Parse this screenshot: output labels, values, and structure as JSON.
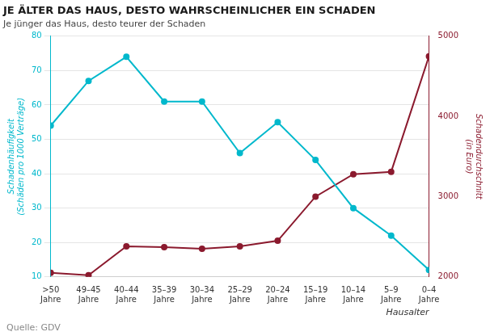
{
  "chart_data": {
    "type": "line",
    "title": "JE ÄLTER DAS HAUS, DESTO WAHRSCHEINLICHER EIN SCHADEN",
    "subtitle": "Je jünger das Haus, desto teurer der Schaden",
    "source": "Quelle: GDV",
    "xlabel": "Hausalter",
    "ylabel": "Schadenhäufigkeit\n(Schäden pro 1000 Verträge)",
    "y2label": "Schadendurchschnitt\n(in Euro)",
    "categories": [
      ">50\nJahre",
      "49–45\nJahre",
      "40–44\nJahre",
      "35–39\nJahre",
      "30–34\nJahre",
      "25–29\nJahre",
      "20–24\nJahre",
      "15–19\nJahre",
      "10–14\nJahre",
      "5–9\nJahre",
      "0–4\nJahre"
    ],
    "series": [
      {
        "name": "Schadenhäufigkeit\n(Schäden pro 1000 Verträge)",
        "color": "#00b8cc",
        "marker": "circle",
        "values": [
          54,
          67,
          74,
          61,
          61,
          46,
          55,
          44,
          30,
          22,
          12
        ]
      },
      {
        "name": "Schadendurchschnitt\n(in Euro)",
        "color": "#8b1a2e",
        "marker": "circle",
        "axis": "y2",
        "values": [
          2050,
          2020,
          2380,
          2370,
          2350,
          2380,
          2450,
          3000,
          3280,
          3310,
          4750
        ]
      }
    ],
    "ylim": [
      10,
      80
    ],
    "yticks": [
      10,
      20,
      30,
      40,
      50,
      60,
      70,
      80
    ],
    "y2lim": [
      2000,
      5000
    ],
    "y2ticks": [
      2000,
      3000,
      4000,
      5000
    ],
    "grid": true
  }
}
